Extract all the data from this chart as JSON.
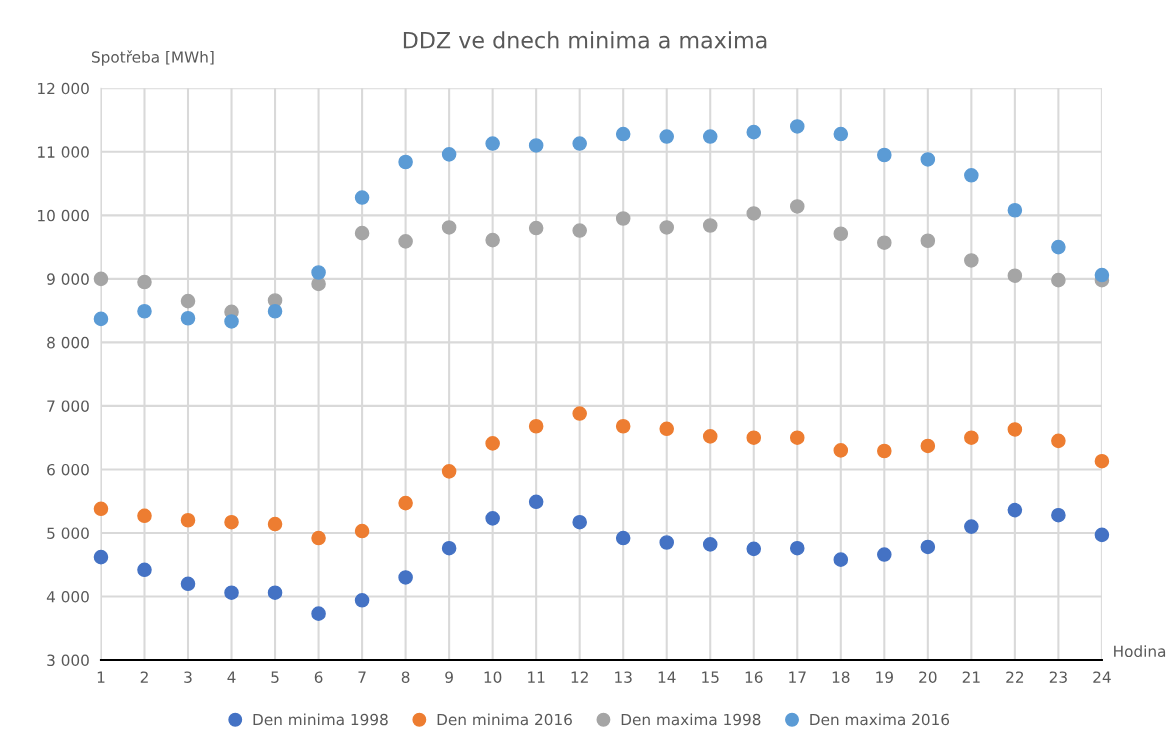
{
  "chart_data": {
    "type": "scatter",
    "title": "DDZ ve dnech minima a maxima",
    "xlabel": "Hodina",
    "ylabel": "Spotřeba [MWh]",
    "x": [
      1,
      2,
      3,
      4,
      5,
      6,
      7,
      8,
      9,
      10,
      11,
      12,
      13,
      14,
      15,
      16,
      17,
      18,
      19,
      20,
      21,
      22,
      23,
      24
    ],
    "series": [
      {
        "name": "Den minima 1998",
        "color": "#4472c4",
        "values": [
          4620,
          4420,
          4200,
          4060,
          4060,
          3730,
          3940,
          4300,
          4760,
          5230,
          5490,
          5170,
          4920,
          4850,
          4820,
          4750,
          4760,
          4580,
          4660,
          4780,
          5100,
          5360,
          5280,
          4970
        ]
      },
      {
        "name": "Den minima 2016",
        "color": "#ed7d31",
        "values": [
          5380,
          5270,
          5200,
          5170,
          5140,
          4920,
          5030,
          5470,
          5970,
          6410,
          6680,
          6880,
          6680,
          6640,
          6520,
          6500,
          6500,
          6300,
          6290,
          6370,
          6500,
          6630,
          6450,
          6130
        ]
      },
      {
        "name": "Den maxima 1998",
        "color": "#a5a5a5",
        "values": [
          9000,
          8950,
          8650,
          8480,
          8660,
          8920,
          9720,
          9590,
          9810,
          9610,
          9800,
          9760,
          9950,
          9810,
          9840,
          10030,
          10140,
          9710,
          9570,
          9600,
          9290,
          9050,
          8980,
          8980
        ]
      },
      {
        "name": "Den maxima 2016",
        "color": "#5b9bd5",
        "values": [
          8370,
          8490,
          8380,
          8330,
          8490,
          9100,
          10280,
          10840,
          10960,
          11130,
          11100,
          11130,
          11280,
          11240,
          11240,
          11310,
          11400,
          11280,
          10950,
          10880,
          10630,
          10080,
          9500,
          9060
        ]
      }
    ],
    "xlim": [
      1,
      24
    ],
    "xticks": [
      1,
      2,
      3,
      4,
      5,
      6,
      7,
      8,
      9,
      10,
      11,
      12,
      13,
      14,
      15,
      16,
      17,
      18,
      19,
      20,
      21,
      22,
      23,
      24
    ],
    "ylim": [
      3000,
      12000
    ],
    "yticks": [
      {
        "value": 3000,
        "label": "3 000"
      },
      {
        "value": 4000,
        "label": "4 000"
      },
      {
        "value": 5000,
        "label": "5 000"
      },
      {
        "value": 6000,
        "label": "6 000"
      },
      {
        "value": 7000,
        "label": "7 000"
      },
      {
        "value": 8000,
        "label": "8 000"
      },
      {
        "value": 9000,
        "label": "9 000"
      },
      {
        "value": 10000,
        "label": "10 000"
      },
      {
        "value": 11000,
        "label": "11 000"
      },
      {
        "value": 12000,
        "label": "12 000"
      }
    ],
    "grid": true,
    "legend": "bottom",
    "marker": "circle"
  }
}
